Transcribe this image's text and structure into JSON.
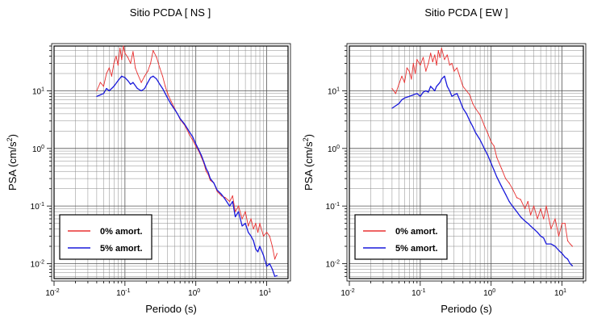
{
  "chart_data": [
    {
      "type": "line",
      "title": "Sitio PCDA [ NS ]",
      "xlabel": "Periodo (s)",
      "ylabel_main": "PSA (cm/s",
      "ylabel_sup": "2",
      "ylabel_tail": ")",
      "xscale": "log",
      "yscale": "log",
      "xlim": [
        0.01,
        20
      ],
      "ylim": [
        0.0055,
        60
      ],
      "grid": true,
      "legend_position": "bottom-left",
      "xticks": [
        {
          "base": "10",
          "exp": "-2",
          "v": 0.01
        },
        {
          "base": "10",
          "exp": "-1",
          "v": 0.1
        },
        {
          "base": "10",
          "exp": "0",
          "v": 1
        },
        {
          "base": "10",
          "exp": "1",
          "v": 10
        }
      ],
      "yticks": [
        {
          "base": "10",
          "exp": "-2",
          "v": 0.01
        },
        {
          "base": "10",
          "exp": "-1",
          "v": 0.1
        },
        {
          "base": "10",
          "exp": "0",
          "v": 1
        },
        {
          "base": "10",
          "exp": "1",
          "v": 10
        }
      ],
      "series": [
        {
          "name": "0% amort.",
          "color": "#e83030",
          "x": [
            0.04,
            0.045,
            0.05,
            0.055,
            0.06,
            0.065,
            0.07,
            0.075,
            0.08,
            0.085,
            0.09,
            0.095,
            0.1,
            0.11,
            0.12,
            0.13,
            0.14,
            0.15,
            0.17,
            0.19,
            0.21,
            0.23,
            0.25,
            0.28,
            0.31,
            0.34,
            0.37,
            0.4,
            0.45,
            0.5,
            0.55,
            0.6,
            0.7,
            0.8,
            0.9,
            1.0,
            1.1,
            1.2,
            1.3,
            1.4,
            1.5,
            1.6,
            1.8,
            2.0,
            2.3,
            2.6,
            3.0,
            3.3,
            3.6,
            4.0,
            4.5,
            5.0,
            5.5,
            6.0,
            6.5,
            7.0,
            7.5,
            8.0,
            9.0,
            10.0,
            11.0,
            12.0,
            13.0,
            14.0
          ],
          "y": [
            10,
            14,
            12,
            20,
            25,
            18,
            30,
            40,
            28,
            55,
            35,
            60,
            45,
            38,
            30,
            48,
            25,
            20,
            14,
            18,
            22,
            30,
            50,
            38,
            25,
            18,
            12,
            9,
            6.5,
            5,
            4,
            3.2,
            2.5,
            1.8,
            1.4,
            1.1,
            0.9,
            0.7,
            0.55,
            0.4,
            0.35,
            0.28,
            0.25,
            0.18,
            0.15,
            0.14,
            0.12,
            0.15,
            0.08,
            0.1,
            0.06,
            0.08,
            0.045,
            0.06,
            0.04,
            0.05,
            0.035,
            0.05,
            0.03,
            0.035,
            0.03,
            0.02,
            0.012,
            0.015
          ]
        },
        {
          "name": "5% amort.",
          "color": "#1a1adb",
          "x": [
            0.04,
            0.045,
            0.05,
            0.055,
            0.06,
            0.07,
            0.08,
            0.09,
            0.1,
            0.11,
            0.12,
            0.13,
            0.15,
            0.17,
            0.19,
            0.21,
            0.23,
            0.25,
            0.28,
            0.31,
            0.34,
            0.37,
            0.4,
            0.45,
            0.5,
            0.55,
            0.6,
            0.7,
            0.8,
            0.9,
            1.0,
            1.1,
            1.2,
            1.3,
            1.4,
            1.5,
            1.6,
            1.8,
            2.0,
            2.3,
            2.6,
            3.0,
            3.3,
            3.6,
            4.0,
            4.5,
            5.0,
            5.5,
            6.0,
            6.5,
            7.0,
            7.5,
            8.0,
            9.0,
            10.0,
            11.0,
            12.0,
            13.0,
            14.0
          ],
          "y": [
            8,
            8.5,
            9,
            11,
            10,
            12,
            15,
            18,
            17,
            15,
            13,
            14,
            11,
            10,
            11,
            14,
            17,
            18,
            16,
            13,
            11,
            9,
            7.5,
            5.8,
            4.8,
            4,
            3.3,
            2.6,
            2,
            1.6,
            1.2,
            0.95,
            0.75,
            0.58,
            0.45,
            0.38,
            0.3,
            0.25,
            0.19,
            0.16,
            0.13,
            0.1,
            0.12,
            0.065,
            0.08,
            0.045,
            0.05,
            0.035,
            0.03,
            0.025,
            0.018,
            0.016,
            0.02,
            0.014,
            0.009,
            0.01,
            0.008,
            0.006,
            0.0062
          ]
        }
      ]
    },
    {
      "type": "line",
      "title": "Sitio PCDA [ EW ]",
      "xlabel": "Periodo (s)",
      "ylabel_main": "PSA (cm/s",
      "ylabel_sup": "2",
      "ylabel_tail": ")",
      "xscale": "log",
      "yscale": "log",
      "xlim": [
        0.01,
        20
      ],
      "ylim": [
        0.0055,
        60
      ],
      "grid": true,
      "legend_position": "bottom-left",
      "xticks": [
        {
          "base": "10",
          "exp": "-2",
          "v": 0.01
        },
        {
          "base": "10",
          "exp": "-1",
          "v": 0.1
        },
        {
          "base": "10",
          "exp": "0",
          "v": 1
        },
        {
          "base": "10",
          "exp": "1",
          "v": 10
        }
      ],
      "yticks": [
        {
          "base": "10",
          "exp": "-2",
          "v": 0.01
        },
        {
          "base": "10",
          "exp": "-1",
          "v": 0.1
        },
        {
          "base": "10",
          "exp": "0",
          "v": 1
        },
        {
          "base": "10",
          "exp": "1",
          "v": 10
        }
      ],
      "series": [
        {
          "name": "0% amort.",
          "color": "#e83030",
          "x": [
            0.04,
            0.045,
            0.05,
            0.055,
            0.06,
            0.065,
            0.07,
            0.075,
            0.08,
            0.085,
            0.09,
            0.1,
            0.11,
            0.12,
            0.13,
            0.14,
            0.15,
            0.16,
            0.17,
            0.18,
            0.19,
            0.2,
            0.22,
            0.24,
            0.26,
            0.28,
            0.3,
            0.33,
            0.36,
            0.4,
            0.45,
            0.5,
            0.55,
            0.6,
            0.7,
            0.8,
            0.9,
            1.0,
            1.1,
            1.2,
            1.4,
            1.6,
            1.8,
            2.0,
            2.3,
            2.6,
            3.0,
            3.3,
            3.6,
            4.0,
            4.5,
            5.0,
            5.5,
            6.0,
            7.0,
            8.0,
            9.0,
            10.0,
            11.0,
            12.0,
            13.0,
            14.0
          ],
          "y": [
            11,
            9,
            13,
            18,
            14,
            25,
            22,
            16,
            30,
            20,
            35,
            28,
            38,
            22,
            30,
            45,
            32,
            42,
            28,
            50,
            38,
            55,
            35,
            42,
            28,
            30,
            22,
            25,
            18,
            12,
            10,
            8.5,
            6,
            5,
            3.8,
            2.5,
            1.8,
            1.3,
            1.1,
            0.7,
            0.45,
            0.3,
            0.25,
            0.2,
            0.14,
            0.13,
            0.09,
            0.12,
            0.07,
            0.1,
            0.06,
            0.09,
            0.06,
            0.1,
            0.04,
            0.06,
            0.03,
            0.05,
            0.05,
            0.025,
            0.022,
            0.02
          ]
        },
        {
          "name": "5% amort.",
          "color": "#1a1adb",
          "x": [
            0.04,
            0.045,
            0.05,
            0.055,
            0.06,
            0.07,
            0.08,
            0.09,
            0.1,
            0.11,
            0.12,
            0.13,
            0.14,
            0.15,
            0.16,
            0.17,
            0.18,
            0.19,
            0.2,
            0.22,
            0.24,
            0.26,
            0.28,
            0.3,
            0.33,
            0.36,
            0.4,
            0.45,
            0.5,
            0.55,
            0.6,
            0.7,
            0.8,
            0.9,
            1.0,
            1.1,
            1.2,
            1.4,
            1.6,
            1.8,
            2.0,
            2.3,
            2.6,
            3.0,
            3.3,
            3.6,
            4.0,
            4.5,
            5.0,
            5.5,
            6.0,
            7.0,
            8.0,
            9.0,
            10.0,
            11.0,
            12.0,
            13.0,
            14.0
          ],
          "y": [
            5,
            5.5,
            6,
            7,
            7.5,
            8,
            8.5,
            9,
            8,
            9.5,
            10,
            9.5,
            12,
            11,
            10,
            12,
            13,
            14,
            16,
            18,
            12,
            10,
            8,
            8.5,
            9,
            7,
            5,
            4,
            3,
            2.4,
            1.9,
            1.4,
            1,
            0.75,
            0.55,
            0.42,
            0.32,
            0.22,
            0.16,
            0.12,
            0.1,
            0.08,
            0.065,
            0.055,
            0.05,
            0.045,
            0.04,
            0.035,
            0.03,
            0.028,
            0.022,
            0.022,
            0.02,
            0.017,
            0.015,
            0.013,
            0.012,
            0.01,
            0.0092
          ]
        }
      ]
    }
  ]
}
